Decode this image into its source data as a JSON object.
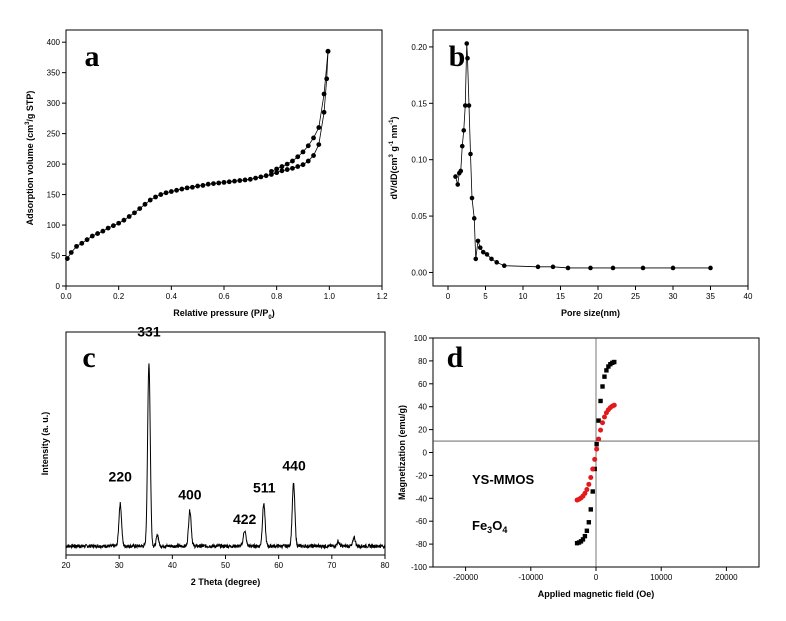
{
  "chart_data": [
    {
      "id": "a",
      "type": "line",
      "panel_label": "a",
      "xlabel": "Relative pressure (P/P",
      "xlabel_sub": "0",
      "xlabel_end": ")",
      "ylabel": "Adsorption volume (cm",
      "ylabel_sup": "3",
      "ylabel_end": "/g STP)",
      "xlim": [
        0.0,
        1.2
      ],
      "ylim": [
        0,
        420
      ],
      "xticks": [
        0.0,
        0.2,
        0.4,
        0.6,
        0.8,
        1.0,
        1.2
      ],
      "xtick_labels": [
        "0.0",
        "0.2",
        "0.4",
        "0.6",
        "0.8",
        "1.0",
        "1.2"
      ],
      "yticks": [
        0,
        50,
        100,
        150,
        200,
        250,
        300,
        350,
        400
      ],
      "ytick_labels": [
        "0",
        "50",
        "100",
        "150",
        "200",
        "250",
        "300",
        "350",
        "400"
      ],
      "series": [
        {
          "name": "",
          "color": "#000000",
          "x": [
            0.005,
            0.02,
            0.04,
            0.06,
            0.08,
            0.1,
            0.12,
            0.14,
            0.16,
            0.18,
            0.2,
            0.22,
            0.24,
            0.26,
            0.28,
            0.3,
            0.32,
            0.34,
            0.36,
            0.38,
            0.4,
            0.42,
            0.44,
            0.46,
            0.48,
            0.5,
            0.52,
            0.54,
            0.56,
            0.58,
            0.6,
            0.62,
            0.64,
            0.66,
            0.68,
            0.7,
            0.72,
            0.74,
            0.76,
            0.78,
            0.8,
            0.82,
            0.84,
            0.86,
            0.88,
            0.9,
            0.92,
            0.94,
            0.96,
            0.98,
            0.99,
            0.995
          ],
          "y": [
            45,
            55,
            65,
            70,
            76,
            82,
            86,
            90,
            95,
            99,
            103,
            108,
            114,
            120,
            127,
            134,
            141,
            146,
            150,
            153,
            155,
            157,
            159,
            161,
            162,
            164,
            165,
            167,
            168,
            169,
            170,
            171,
            172,
            173,
            174,
            175,
            177,
            179,
            181,
            183,
            186,
            189,
            191,
            193,
            196,
            199,
            205,
            214,
            232,
            285,
            340,
            385
          ]
        },
        {
          "name": "",
          "color": "#000000",
          "x": [
            0.995,
            0.98,
            0.96,
            0.94,
            0.92,
            0.9,
            0.88,
            0.86,
            0.84,
            0.82,
            0.8,
            0.78
          ],
          "y": [
            385,
            315,
            260,
            243,
            230,
            220,
            212,
            205,
            200,
            196,
            192,
            188
          ]
        }
      ]
    },
    {
      "id": "b",
      "type": "line",
      "panel_label": "b",
      "xlabel": "Pore size(nm)",
      "ylabel": "dV/dD(cm",
      "ylabel_sup1": "3",
      "ylabel_mid": " g",
      "ylabel_sup2": "-1",
      "ylabel_mid2": " nm",
      "ylabel_sup3": "-1",
      "ylabel_end": ")",
      "xlim": [
        -2,
        40
      ],
      "ylim": [
        -0.012,
        0.215
      ],
      "xticks": [
        0,
        5,
        10,
        15,
        20,
        25,
        30,
        35,
        40
      ],
      "xtick_labels": [
        "0",
        "5",
        "10",
        "15",
        "20",
        "25",
        "30",
        "35",
        "40"
      ],
      "yticks": [
        0.0,
        0.05,
        0.1,
        0.15,
        0.2
      ],
      "ytick_labels": [
        "0.00",
        "0.05",
        "0.10",
        "0.15",
        "0.20"
      ],
      "series": [
        {
          "name": "",
          "color": "#000000",
          "x": [
            1.0,
            1.3,
            1.5,
            1.7,
            1.9,
            2.1,
            2.3,
            2.5,
            2.6,
            2.8,
            3.0,
            3.2,
            3.5,
            3.7,
            4.0,
            4.3,
            4.7,
            5.2,
            5.8,
            6.5,
            7.5,
            12,
            14,
            16,
            19,
            22,
            26,
            30,
            35
          ],
          "y": [
            0.085,
            0.078,
            0.088,
            0.09,
            0.112,
            0.126,
            0.148,
            0.203,
            0.19,
            0.148,
            0.105,
            0.066,
            0.048,
            0.012,
            0.028,
            0.022,
            0.018,
            0.016,
            0.012,
            0.009,
            0.006,
            0.005,
            0.005,
            0.004,
            0.004,
            0.004,
            0.004,
            0.004,
            0.004
          ]
        }
      ]
    },
    {
      "id": "c",
      "type": "line",
      "panel_label": "c",
      "xlabel": "2 Theta (degree)",
      "ylabel": "Intensity (a. u.)",
      "xlim": [
        20,
        80
      ],
      "ylim": [
        0,
        100
      ],
      "xticks": [
        20,
        30,
        40,
        50,
        60,
        70,
        80
      ],
      "xtick_labels": [
        "20",
        "30",
        "40",
        "50",
        "60",
        "70",
        "80"
      ],
      "peak_labels": [
        {
          "text": "220",
          "x": 30.2,
          "y": 33
        },
        {
          "text": "331",
          "x": 35.6,
          "y": 98
        },
        {
          "text": "400",
          "x": 43.3,
          "y": 25
        },
        {
          "text": "422",
          "x": 53.6,
          "y": 14
        },
        {
          "text": "511",
          "x": 57.3,
          "y": 28
        },
        {
          "text": "440",
          "x": 62.9,
          "y": 38
        }
      ],
      "peaks": [
        {
          "x": 30.2,
          "h": 19,
          "w": 0.35
        },
        {
          "x": 35.6,
          "h": 82,
          "w": 0.35
        },
        {
          "x": 37.2,
          "h": 5,
          "w": 0.3
        },
        {
          "x": 43.3,
          "h": 16,
          "w": 0.35
        },
        {
          "x": 53.6,
          "h": 7,
          "w": 0.35
        },
        {
          "x": 57.2,
          "h": 19,
          "w": 0.35
        },
        {
          "x": 62.8,
          "h": 28,
          "w": 0.35
        },
        {
          "x": 71.2,
          "h": 2,
          "w": 0.3
        },
        {
          "x": 74.2,
          "h": 4,
          "w": 0.3
        }
      ],
      "baseline": 4
    },
    {
      "id": "d",
      "type": "scatter",
      "panel_label": "d",
      "xlabel": "Applied magnetic field (Oe)",
      "ylabel": "Magnetization (emu/g)",
      "xlim": [
        -25000,
        25000
      ],
      "ylim": [
        -100,
        100
      ],
      "xticks": [
        -20000,
        -10000,
        0,
        10000,
        20000
      ],
      "xtick_labels": [
        "-20000",
        "-10000",
        "0",
        "10000",
        "20000"
      ],
      "yticks": [
        -100,
        -80,
        -60,
        -40,
        -20,
        0,
        20,
        40,
        60,
        80,
        100
      ],
      "ytick_labels": [
        "-100",
        "-80",
        "-60",
        "-40",
        "-20",
        "0",
        "20",
        "40",
        "60",
        "80",
        "100"
      ],
      "ref_h_y": 10,
      "ref_v_x": 0,
      "series": [
        {
          "name": "Fe3O4",
          "label_text": "Fe",
          "label_sub": "3",
          "label_mid": "O",
          "label_sub2": "4",
          "color": "#000000",
          "ms": 80,
          "k": 500
        },
        {
          "name": "YS-MMOS",
          "label_text": "YS-MMOS",
          "color": "#e31a1c",
          "ms": 43,
          "k": 650
        }
      ]
    }
  ]
}
